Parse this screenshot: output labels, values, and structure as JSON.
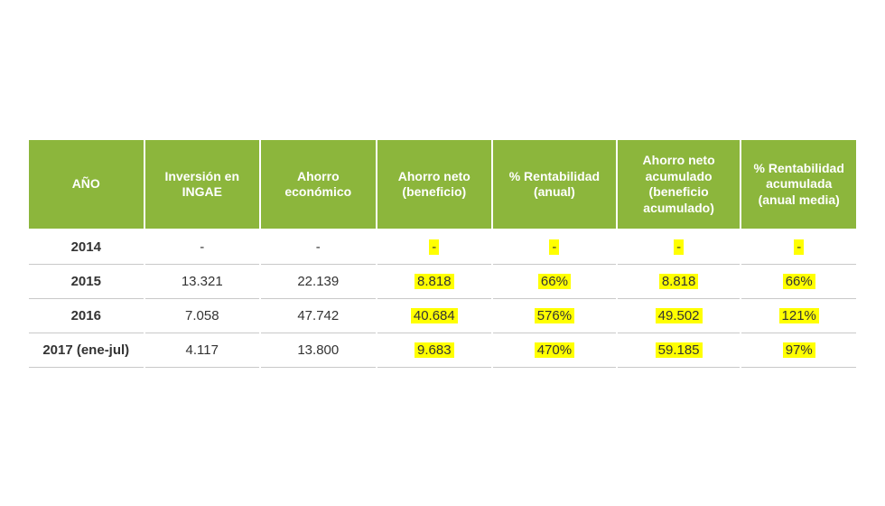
{
  "table": {
    "type": "table",
    "background_color": "#ffffff",
    "header_bg": "#8cb63c",
    "header_text_color": "#ffffff",
    "header_fontsize": 14,
    "header_fontweight": "bold",
    "cell_fontsize": 15,
    "cell_text_color": "#333333",
    "row_border_color": "#c9c9c9",
    "cell_border_color": "#ffffff",
    "highlight_bg": "#ffff00",
    "year_fontweight": "bold",
    "column_widths_pct": [
      14,
      14,
      14,
      14,
      15,
      15,
      14
    ],
    "columns": [
      "AÑO",
      "Inversión en INGAE",
      "Ahorro económico",
      "Ahorro neto (beneficio)",
      "% Rentabilidad (anual)",
      "Ahorro neto acumulado (beneficio acumulado)",
      "% Rentabilidad acumulada (anual media)"
    ],
    "highlight_columns": [
      3,
      4,
      5,
      6
    ],
    "rows": [
      {
        "year": "2014",
        "cells": [
          "-",
          "-",
          "-",
          "-",
          "-",
          "-"
        ]
      },
      {
        "year": "2015",
        "cells": [
          "13.321",
          "22.139",
          "8.818",
          "66%",
          "8.818",
          "66%"
        ]
      },
      {
        "year": "2016",
        "cells": [
          "7.058",
          "47.742",
          "40.684",
          "576%",
          "49.502",
          "121%"
        ]
      },
      {
        "year": "2017 (ene-jul)",
        "cells": [
          "4.117",
          "13.800",
          "9.683",
          "470%",
          "59.185",
          "97%"
        ]
      }
    ]
  }
}
